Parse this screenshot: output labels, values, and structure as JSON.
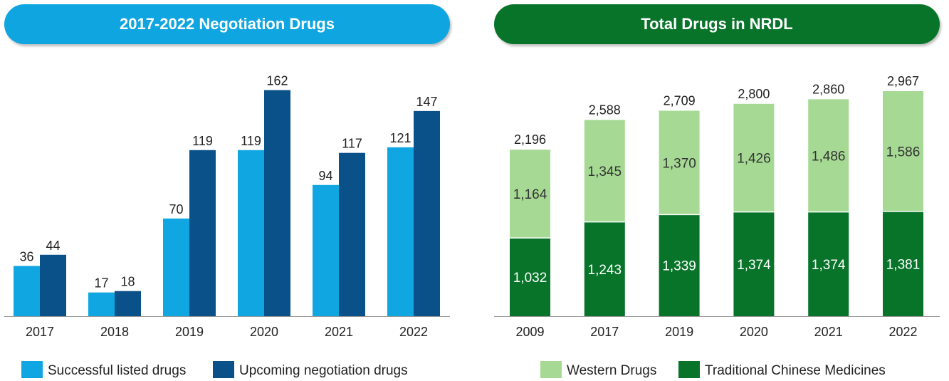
{
  "charts": {
    "left_title": "2017-2022 Negotiation Drugs",
    "right_title": "Total Drugs in NRDL"
  },
  "colors": {
    "left_banner": "#0ea5e0",
    "right_banner": "#08742a",
    "successful": "#10a6e2",
    "upcoming": "#0a5189",
    "western": "#a6da94",
    "tcm": "#08742a"
  },
  "chart_data": [
    {
      "type": "bar",
      "title": "2017-2022 Negotiation Drugs",
      "categories": [
        "2017",
        "2018",
        "2019",
        "2020",
        "2021",
        "2022"
      ],
      "series": [
        {
          "name": "Successful listed drugs",
          "values": [
            36,
            17,
            70,
            119,
            94,
            121
          ]
        },
        {
          "name": "Upcoming negotiation drugs",
          "values": [
            44,
            18,
            119,
            162,
            117,
            147
          ]
        }
      ],
      "ylim": [
        0,
        180
      ],
      "grid": false,
      "legend": "bottom"
    },
    {
      "type": "bar",
      "stacked": true,
      "title": "Total Drugs in NRDL",
      "categories": [
        "2009",
        "2017",
        "2019",
        "2020",
        "2021",
        "2022"
      ],
      "series": [
        {
          "name": "Traditional Chinese Medicines",
          "values": [
            1032,
            1243,
            1339,
            1374,
            1374,
            1381
          ]
        },
        {
          "name": "Western Drugs",
          "values": [
            1164,
            1345,
            1370,
            1426,
            1486,
            1586
          ]
        }
      ],
      "totals": [
        "2,196",
        "2,588",
        "2,709",
        "2,800",
        "2,860",
        "2,967"
      ],
      "ylim": [
        0,
        3400
      ],
      "grid": false,
      "legend": "bottom"
    }
  ]
}
